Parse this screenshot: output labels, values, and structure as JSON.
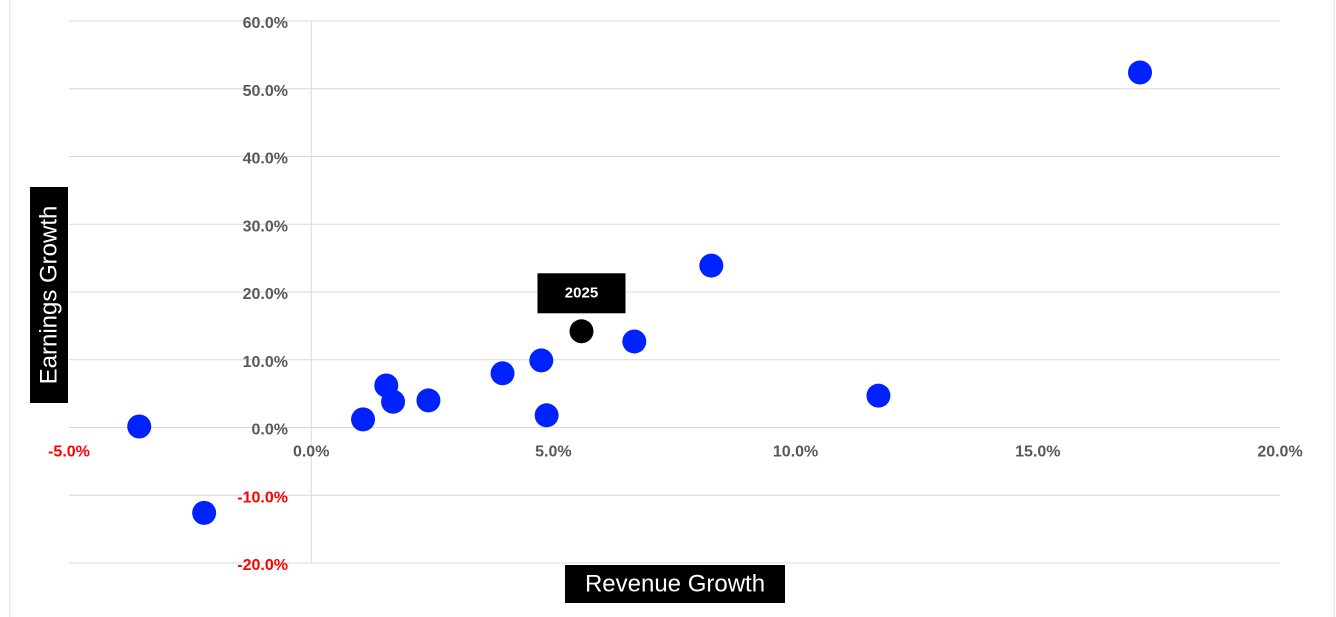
{
  "chart_data": {
    "type": "scatter",
    "x_label": "Revenue Growth",
    "y_label": "Earnings Growth",
    "xlim": [
      -5,
      20
    ],
    "ylim": [
      -20,
      60
    ],
    "xticks": [
      {
        "value": -5,
        "label": "-5.0%"
      },
      {
        "value": 0,
        "label": "0.0%"
      },
      {
        "value": 5,
        "label": "5.0%"
      },
      {
        "value": 10,
        "label": "10.0%"
      },
      {
        "value": 15,
        "label": "15.0%"
      },
      {
        "value": 20,
        "label": "20.0%"
      }
    ],
    "yticks": [
      {
        "value": -20,
        "label": "-20.0%"
      },
      {
        "value": -10,
        "label": "-10.0%"
      },
      {
        "value": 0,
        "label": "0.0%"
      },
      {
        "value": 10,
        "label": "10.0%"
      },
      {
        "value": 20,
        "label": "20.0%"
      },
      {
        "value": 30,
        "label": "30.0%"
      },
      {
        "value": 40,
        "label": "40.0%"
      },
      {
        "value": 50,
        "label": "50.0%"
      },
      {
        "value": 60,
        "label": "60.0%"
      }
    ],
    "grid": true,
    "tick_label_color": "#595959",
    "negative_tick_label_color": "#ff0000",
    "series": [
      {
        "color": "#0022ff",
        "x": [
          -3.55,
          -2.21,
          1.07,
          1.55,
          1.69,
          2.42,
          3.95,
          4.75,
          4.86,
          6.67,
          8.26,
          11.71,
          17.11
        ],
        "values": [
          0.15,
          -12.6,
          1.2,
          6.2,
          3.8,
          4.0,
          8.0,
          9.9,
          1.8,
          12.7,
          23.9,
          4.7,
          52.4
        ]
      },
      {
        "color": "#000000",
        "x": [
          5.58
        ],
        "values": [
          14.2
        ],
        "point_labels": [
          "2025"
        ]
      }
    ]
  }
}
